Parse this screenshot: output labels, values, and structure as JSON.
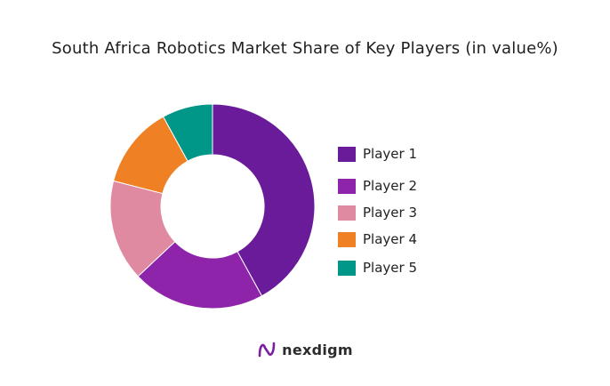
{
  "chart_data": {
    "type": "pie",
    "style": "donut",
    "title": "South Africa Robotics Market Share of Key Players (in value%)",
    "categories": [
      "Player 1",
      "Player 2",
      "Player 3",
      "Player 4",
      "Player 5"
    ],
    "values": [
      42,
      21,
      16,
      13,
      8
    ],
    "colors": [
      "#6a1b9a",
      "#8e24aa",
      "#e08aa2",
      "#f08024",
      "#009688"
    ],
    "legend_position": "right"
  },
  "brand": {
    "name": "nexdigm",
    "accent": "#7b1fa2"
  }
}
